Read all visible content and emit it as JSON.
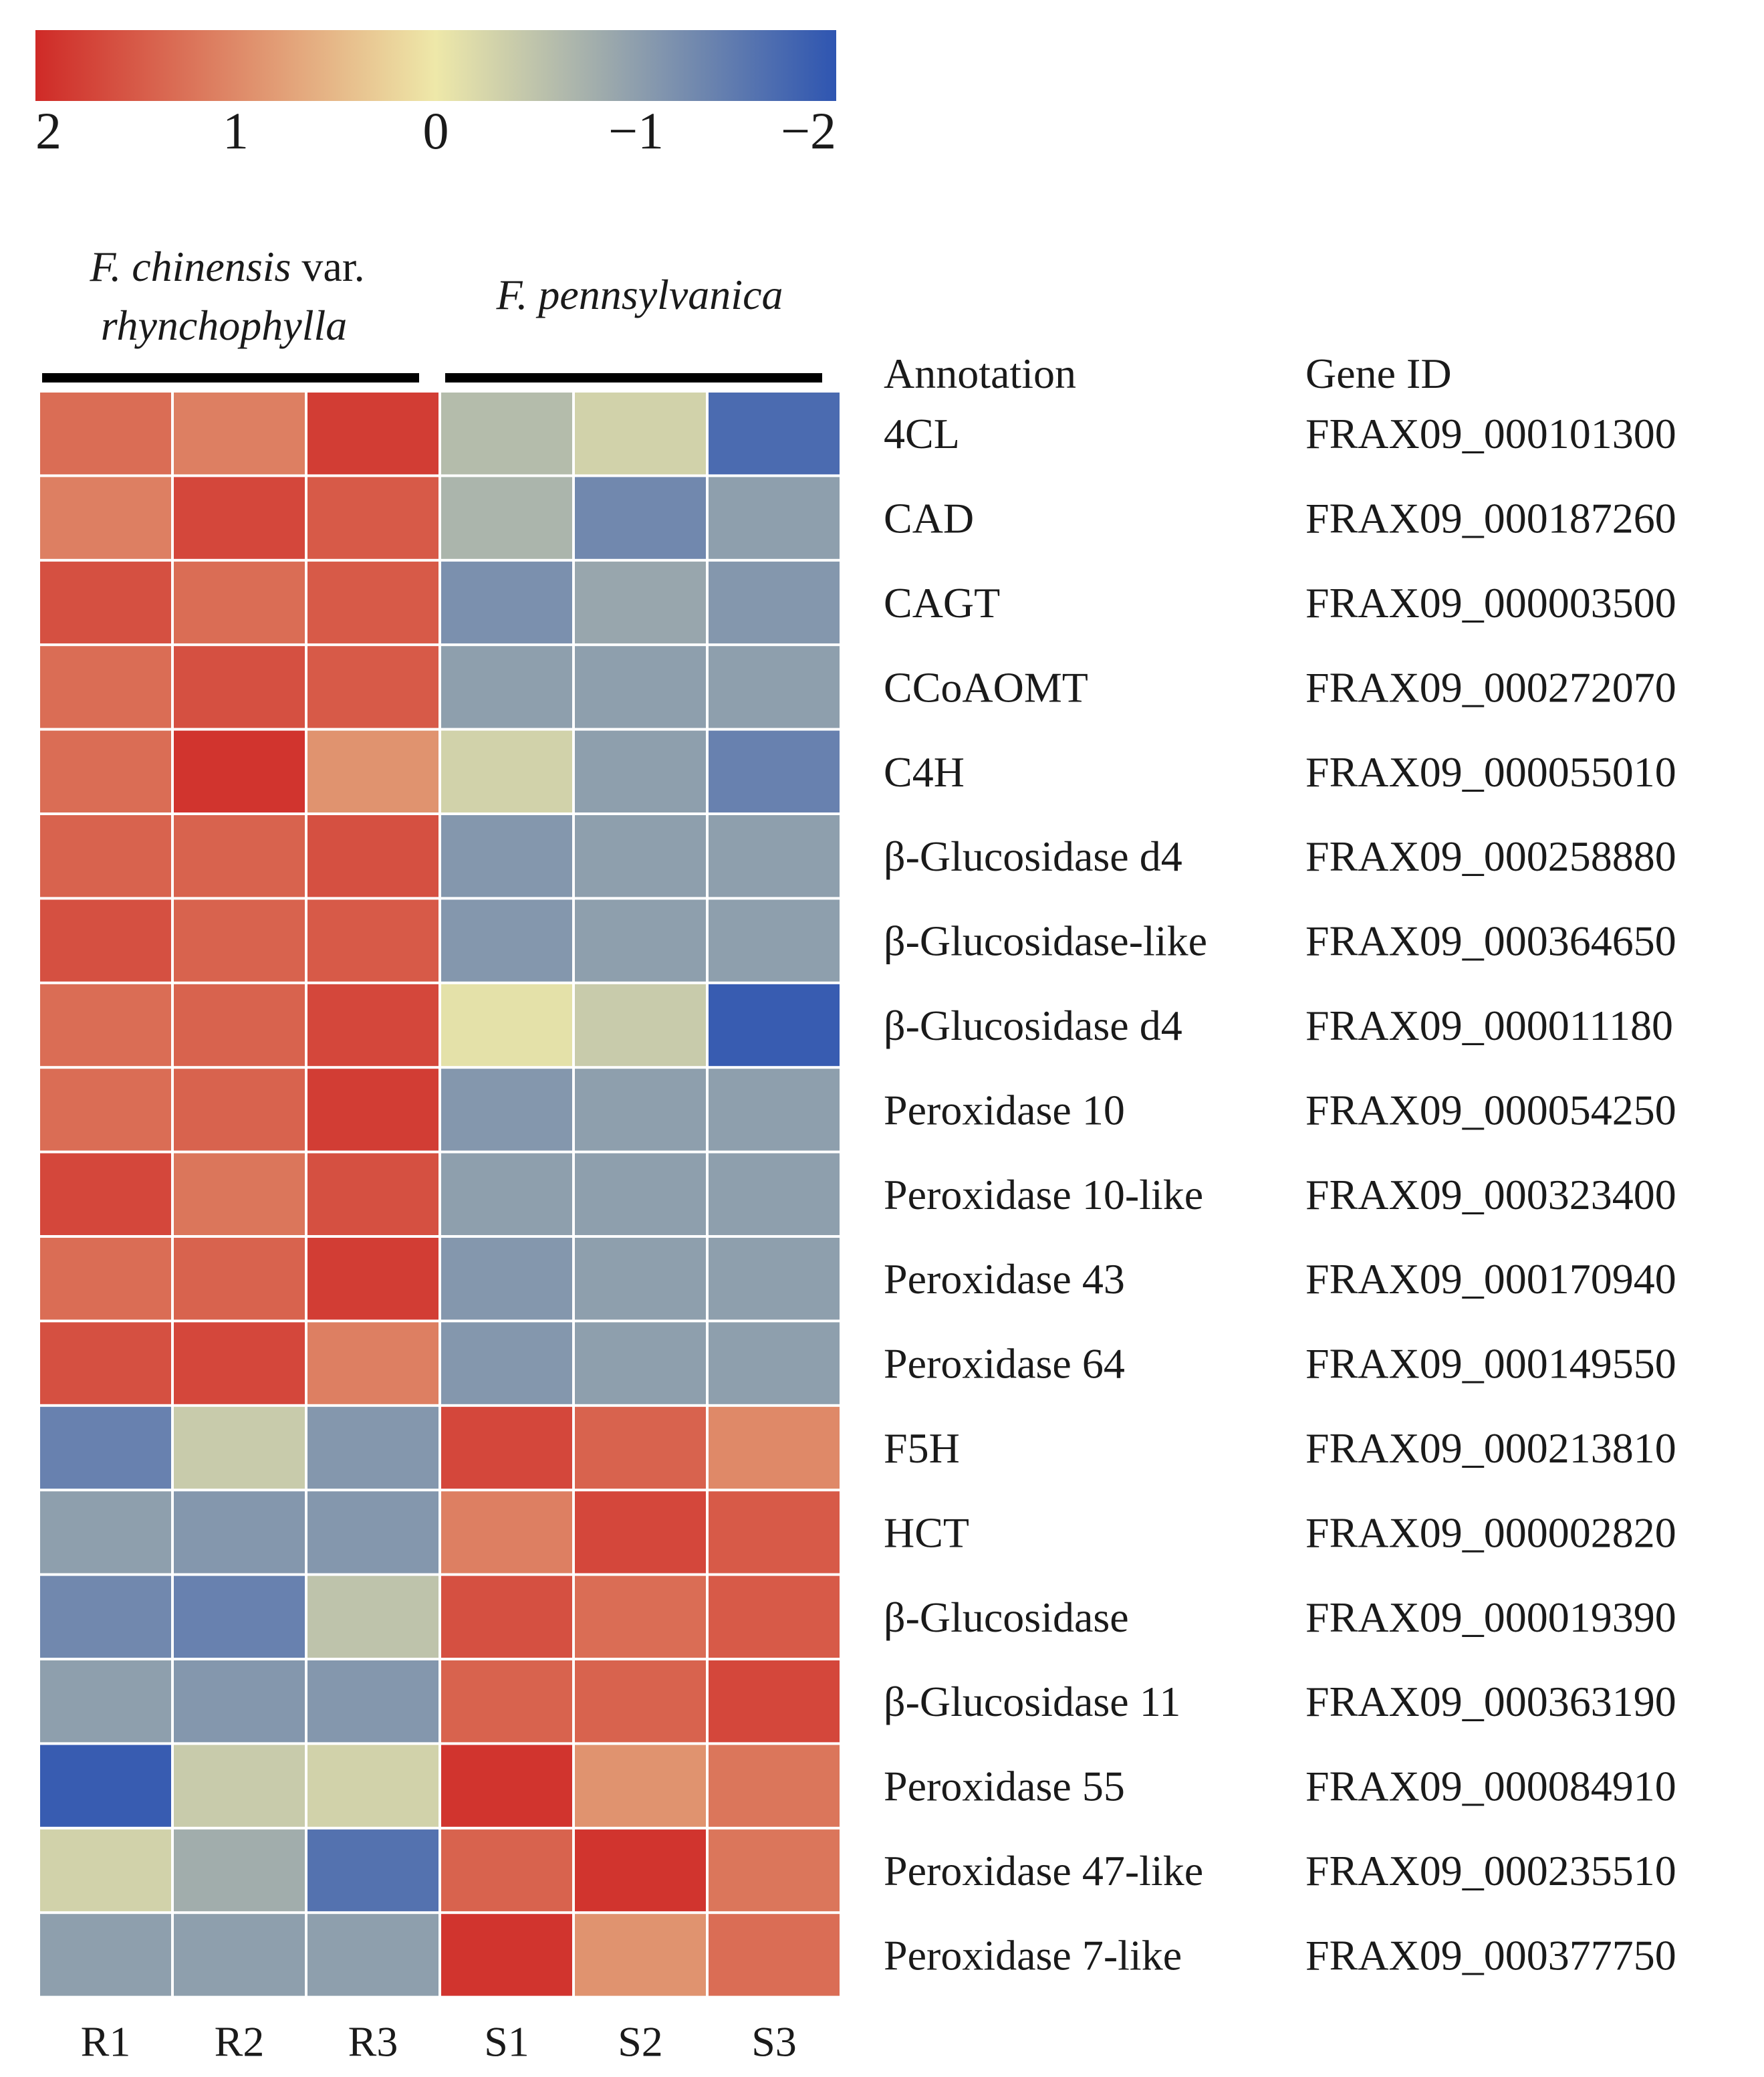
{
  "chart_data": {
    "type": "heatmap",
    "title": "",
    "colorbar": {
      "ticks": [
        "2",
        "1",
        "0",
        "−1",
        "−2"
      ],
      "tick_values": [
        2,
        1,
        0,
        -1,
        -2
      ],
      "range": [
        -2,
        2
      ],
      "colors": {
        "high": "#cf2a27",
        "mid": "#eee8a9",
        "low": "#2e55b1"
      }
    },
    "groups": [
      {
        "name_part1": "F. chinensis",
        "name_part2": " var.",
        "name_part3": "rhynchophylla",
        "columns": [
          "R1",
          "R2",
          "R3"
        ]
      },
      {
        "name": "F. pennsylvanica",
        "columns": [
          "S1",
          "S2",
          "S3"
        ]
      }
    ],
    "columns": [
      "R1",
      "R2",
      "R3",
      "S1",
      "S2",
      "S3"
    ],
    "row_header": {
      "annotation": "Annotation",
      "gene_id": "Gene ID"
    },
    "rows": [
      {
        "annotation": "4CL",
        "gene_id": "FRAX09_000101300",
        "values": [
          1.3,
          1.1,
          1.8,
          -0.6,
          -0.3,
          -1.7
        ]
      },
      {
        "annotation": "CAD",
        "gene_id": "FRAX09_000187260",
        "values": [
          1.1,
          1.7,
          1.5,
          -0.7,
          -1.3,
          -1.0
        ]
      },
      {
        "annotation": "CAGT",
        "gene_id": "FRAX09_000003500",
        "values": [
          1.6,
          1.3,
          1.5,
          -1.2,
          -0.9,
          -1.1
        ]
      },
      {
        "annotation": "CCoAOMT",
        "gene_id": "FRAX09_000272070",
        "values": [
          1.3,
          1.6,
          1.5,
          -1.0,
          -1.0,
          -1.0
        ]
      },
      {
        "annotation": "C4H",
        "gene_id": "FRAX09_000055010",
        "values": [
          1.3,
          1.9,
          0.9,
          -0.3,
          -1.0,
          -1.4
        ]
      },
      {
        "annotation": "β-Glucosidase d4",
        "gene_id": "FRAX09_000258880",
        "values": [
          1.4,
          1.4,
          1.6,
          -1.1,
          -1.0,
          -1.0
        ]
      },
      {
        "annotation": "β-Glucosidase-like",
        "gene_id": "FRAX09_000364650",
        "values": [
          1.6,
          1.4,
          1.5,
          -1.1,
          -1.0,
          -1.0
        ]
      },
      {
        "annotation": "β-Glucosidase d4",
        "gene_id": "FRAX09_000011180",
        "values": [
          1.3,
          1.4,
          1.7,
          -0.1,
          -0.4,
          -1.9
        ]
      },
      {
        "annotation": "Peroxidase 10",
        "gene_id": "FRAX09_000054250",
        "values": [
          1.3,
          1.4,
          1.8,
          -1.1,
          -1.0,
          -1.0
        ]
      },
      {
        "annotation": "Peroxidase 10-like",
        "gene_id": "FRAX09_000323400",
        "values": [
          1.7,
          1.2,
          1.6,
          -1.0,
          -1.0,
          -1.0
        ]
      },
      {
        "annotation": "Peroxidase 43",
        "gene_id": "FRAX09_000170940",
        "values": [
          1.3,
          1.4,
          1.8,
          -1.1,
          -1.0,
          -1.0
        ]
      },
      {
        "annotation": "Peroxidase 64",
        "gene_id": "FRAX09_000149550",
        "values": [
          1.6,
          1.7,
          1.1,
          -1.1,
          -1.0,
          -1.0
        ]
      },
      {
        "annotation": "F5H",
        "gene_id": "FRAX09_000213810",
        "values": [
          -1.4,
          -0.4,
          -1.1,
          1.7,
          1.4,
          1.0
        ]
      },
      {
        "annotation": "HCT",
        "gene_id": "FRAX09_000002820",
        "values": [
          -1.0,
          -1.1,
          -1.1,
          1.1,
          1.7,
          1.5
        ]
      },
      {
        "annotation": "β-Glucosidase",
        "gene_id": "FRAX09_000019390",
        "values": [
          -1.3,
          -1.4,
          -0.5,
          1.6,
          1.3,
          1.5
        ]
      },
      {
        "annotation": "β-Glucosidase 11",
        "gene_id": "FRAX09_000363190",
        "values": [
          -1.0,
          -1.1,
          -1.1,
          1.4,
          1.4,
          1.7
        ]
      },
      {
        "annotation": "Peroxidase 55",
        "gene_id": "FRAX09_000084910",
        "values": [
          -1.9,
          -0.4,
          -0.3,
          1.9,
          0.9,
          1.2
        ]
      },
      {
        "annotation": "Peroxidase 47-like",
        "gene_id": "FRAX09_000235510",
        "values": [
          -0.3,
          -0.8,
          -1.6,
          1.4,
          1.9,
          1.2
        ]
      },
      {
        "annotation": "Peroxidase 7-like",
        "gene_id": "FRAX09_000377750",
        "values": [
          -1.0,
          -1.0,
          -1.0,
          1.9,
          0.9,
          1.3
        ]
      }
    ]
  }
}
